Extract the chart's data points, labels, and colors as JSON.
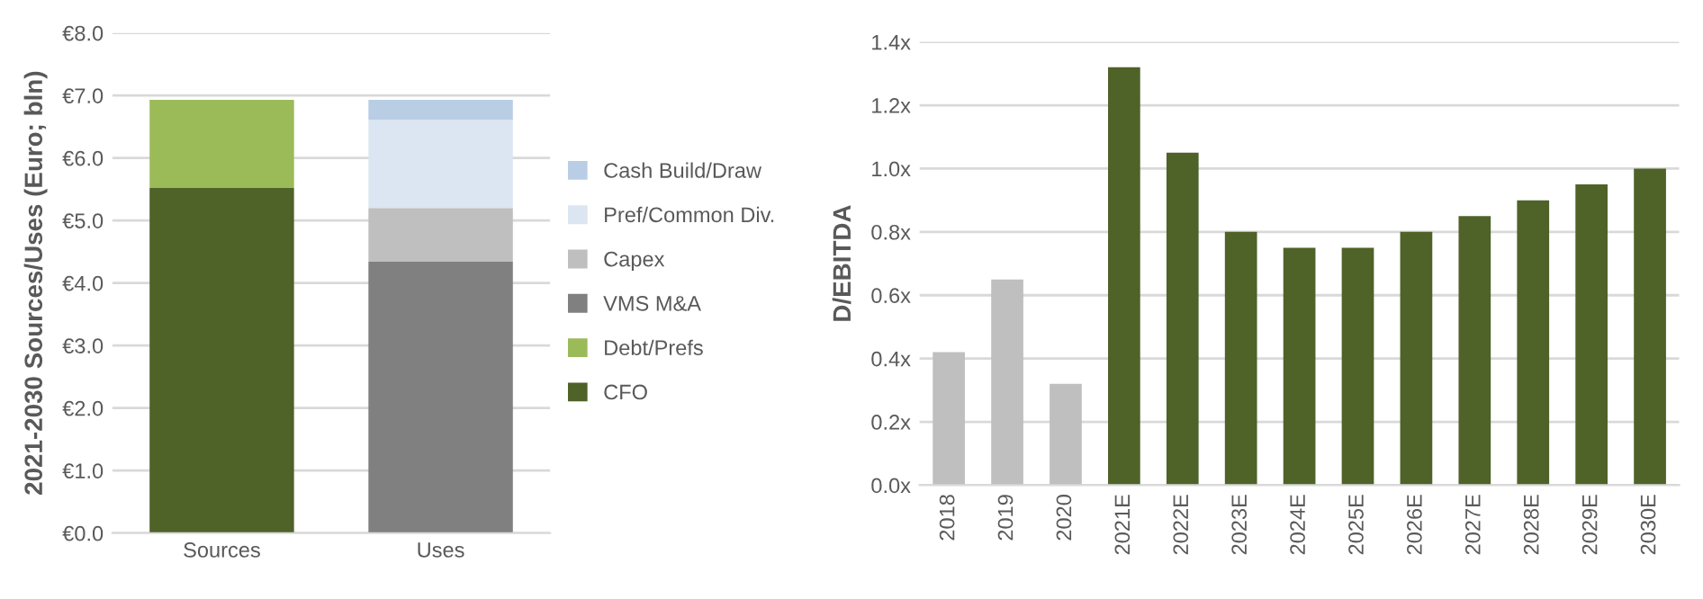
{
  "chart_data": [
    {
      "type": "bar",
      "stacked": true,
      "ylabel": "2021-2030 Sources/Uses (Euro; bln)",
      "categories": [
        "Sources",
        "Uses"
      ],
      "series": [
        {
          "name": "CFO",
          "color": "#4f6228",
          "values": [
            5.52,
            null
          ]
        },
        {
          "name": "Debt/Prefs",
          "color": "#9bbb59",
          "values": [
            1.41,
            null
          ]
        },
        {
          "name": "VMS M&A",
          "color": "#808080",
          "values": [
            null,
            4.34
          ]
        },
        {
          "name": "Capex",
          "color": "#bfbfbf",
          "values": [
            null,
            0.86
          ]
        },
        {
          "name": "Pref/Common Div.",
          "color": "#dce6f2",
          "values": [
            null,
            1.41
          ]
        },
        {
          "name": "Cash Build/Draw",
          "color": "#b9cde5",
          "values": [
            null,
            0.32
          ]
        }
      ],
      "ylim": [
        0,
        8
      ],
      "yticks": [
        {
          "value": 0,
          "label": "€0.0"
        },
        {
          "value": 1,
          "label": "€1.0"
        },
        {
          "value": 2,
          "label": "€2.0"
        },
        {
          "value": 3,
          "label": "€3.0"
        },
        {
          "value": 4,
          "label": "€4.0"
        },
        {
          "value": 5,
          "label": "€5.0"
        },
        {
          "value": 6,
          "label": "€6.0"
        },
        {
          "value": 7,
          "label": "€7.0"
        },
        {
          "value": 8,
          "label": "€8.0"
        }
      ],
      "grid": "y",
      "legend": "right"
    },
    {
      "type": "bar",
      "ylabel": "D/EBITDA",
      "categories": [
        "2018",
        "2019",
        "2020",
        "2021E",
        "2022E",
        "2023E",
        "2024E",
        "2025E",
        "2026E",
        "2027E",
        "2028E",
        "2029E",
        "2030E"
      ],
      "values": [
        0.42,
        0.65,
        0.32,
        1.32,
        1.05,
        0.8,
        0.75,
        0.75,
        0.8,
        0.85,
        0.9,
        0.95,
        1.0
      ],
      "colors": [
        "#bfbfbf",
        "#bfbfbf",
        "#bfbfbf",
        "#4f6228",
        "#4f6228",
        "#4f6228",
        "#4f6228",
        "#4f6228",
        "#4f6228",
        "#4f6228",
        "#4f6228",
        "#4f6228",
        "#4f6228"
      ],
      "ylim": [
        0,
        1.4
      ],
      "yticks": [
        {
          "value": 0,
          "label": "0.0x"
        },
        {
          "value": 0.2,
          "label": "0.2x"
        },
        {
          "value": 0.4,
          "label": "0.4x"
        },
        {
          "value": 0.6,
          "label": "0.6x"
        },
        {
          "value": 0.8,
          "label": "0.8x"
        },
        {
          "value": 1.0,
          "label": "1.0x"
        },
        {
          "value": 1.2,
          "label": "1.2x"
        },
        {
          "value": 1.4,
          "label": "1.4x"
        }
      ],
      "grid": "y"
    }
  ]
}
